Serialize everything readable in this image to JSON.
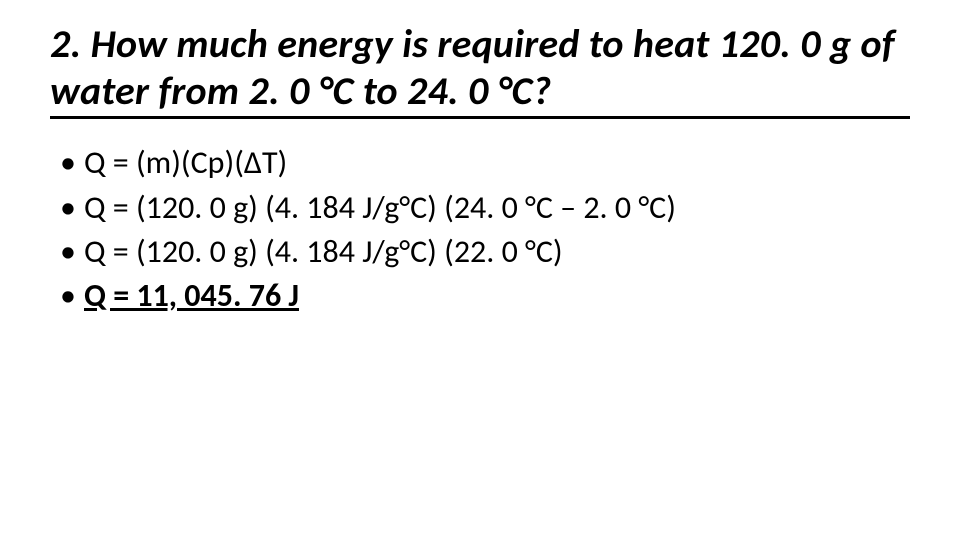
{
  "title": "2. How much energy is required to heat 120. 0 g of water from 2. 0 °C to 24. 0 °C?",
  "title_fontsize": 40,
  "title_italic": true,
  "title_underline_color": "#000000",
  "background_color": "#ffffff",
  "text_color": "#000000",
  "bullets": {
    "fontsize": 32,
    "items": [
      {
        "text": "Q = (m)(Cp)(ΔT)"
      },
      {
        "text": "Q = (120. 0 g) (4. 184 J/g°C) (24. 0 °C – 2. 0 °C)"
      },
      {
        "text": "Q = (120. 0 g) (4. 184 J/g°C) (22. 0 °C)"
      },
      {
        "text": "Q = 11, 045. 76 J",
        "emphasis": "answer"
      }
    ]
  }
}
